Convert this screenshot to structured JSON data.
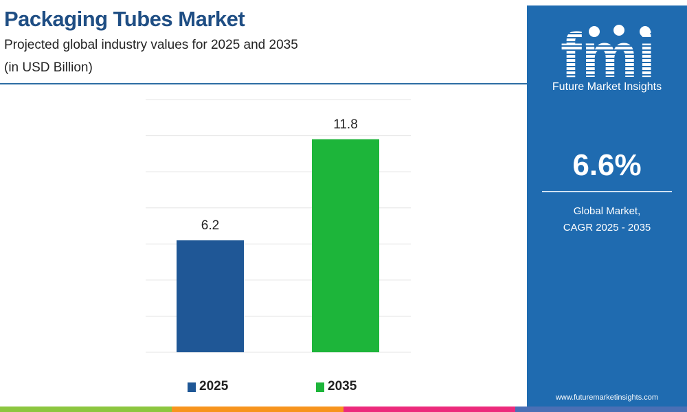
{
  "header": {
    "title": "Packaging Tubes Market",
    "subtitle": "Projected global industry values for 2025 and 2035",
    "unit": "(in USD Billion)"
  },
  "chart_data": {
    "type": "bar",
    "categories": [
      "2025",
      "2035"
    ],
    "values": [
      6.2,
      11.8
    ],
    "value_labels": [
      "6.2",
      "11.8"
    ],
    "colors": [
      "#1f5796",
      "#1db53a"
    ],
    "ylim": [
      0,
      14
    ],
    "grid": true,
    "legend": "bottom",
    "title": "",
    "xlabel": "",
    "ylabel": ""
  },
  "legend": [
    {
      "label": "2025",
      "color": "#1f5796"
    },
    {
      "label": "2035",
      "color": "#1db53a"
    }
  ],
  "panel": {
    "logo_text": "fmi",
    "brand": "Future Market Insights",
    "cagr_value": "6.6%",
    "cagr_line1": "Global Market,",
    "cagr_line2": "CAGR 2025 - 2035",
    "website": "www.futuremarketinsights.com",
    "background_color": "#1f6bb0"
  },
  "stripe_colors": [
    "#8cc63f",
    "#f7941d",
    "#ec2a7c",
    "#4a6fb5"
  ]
}
